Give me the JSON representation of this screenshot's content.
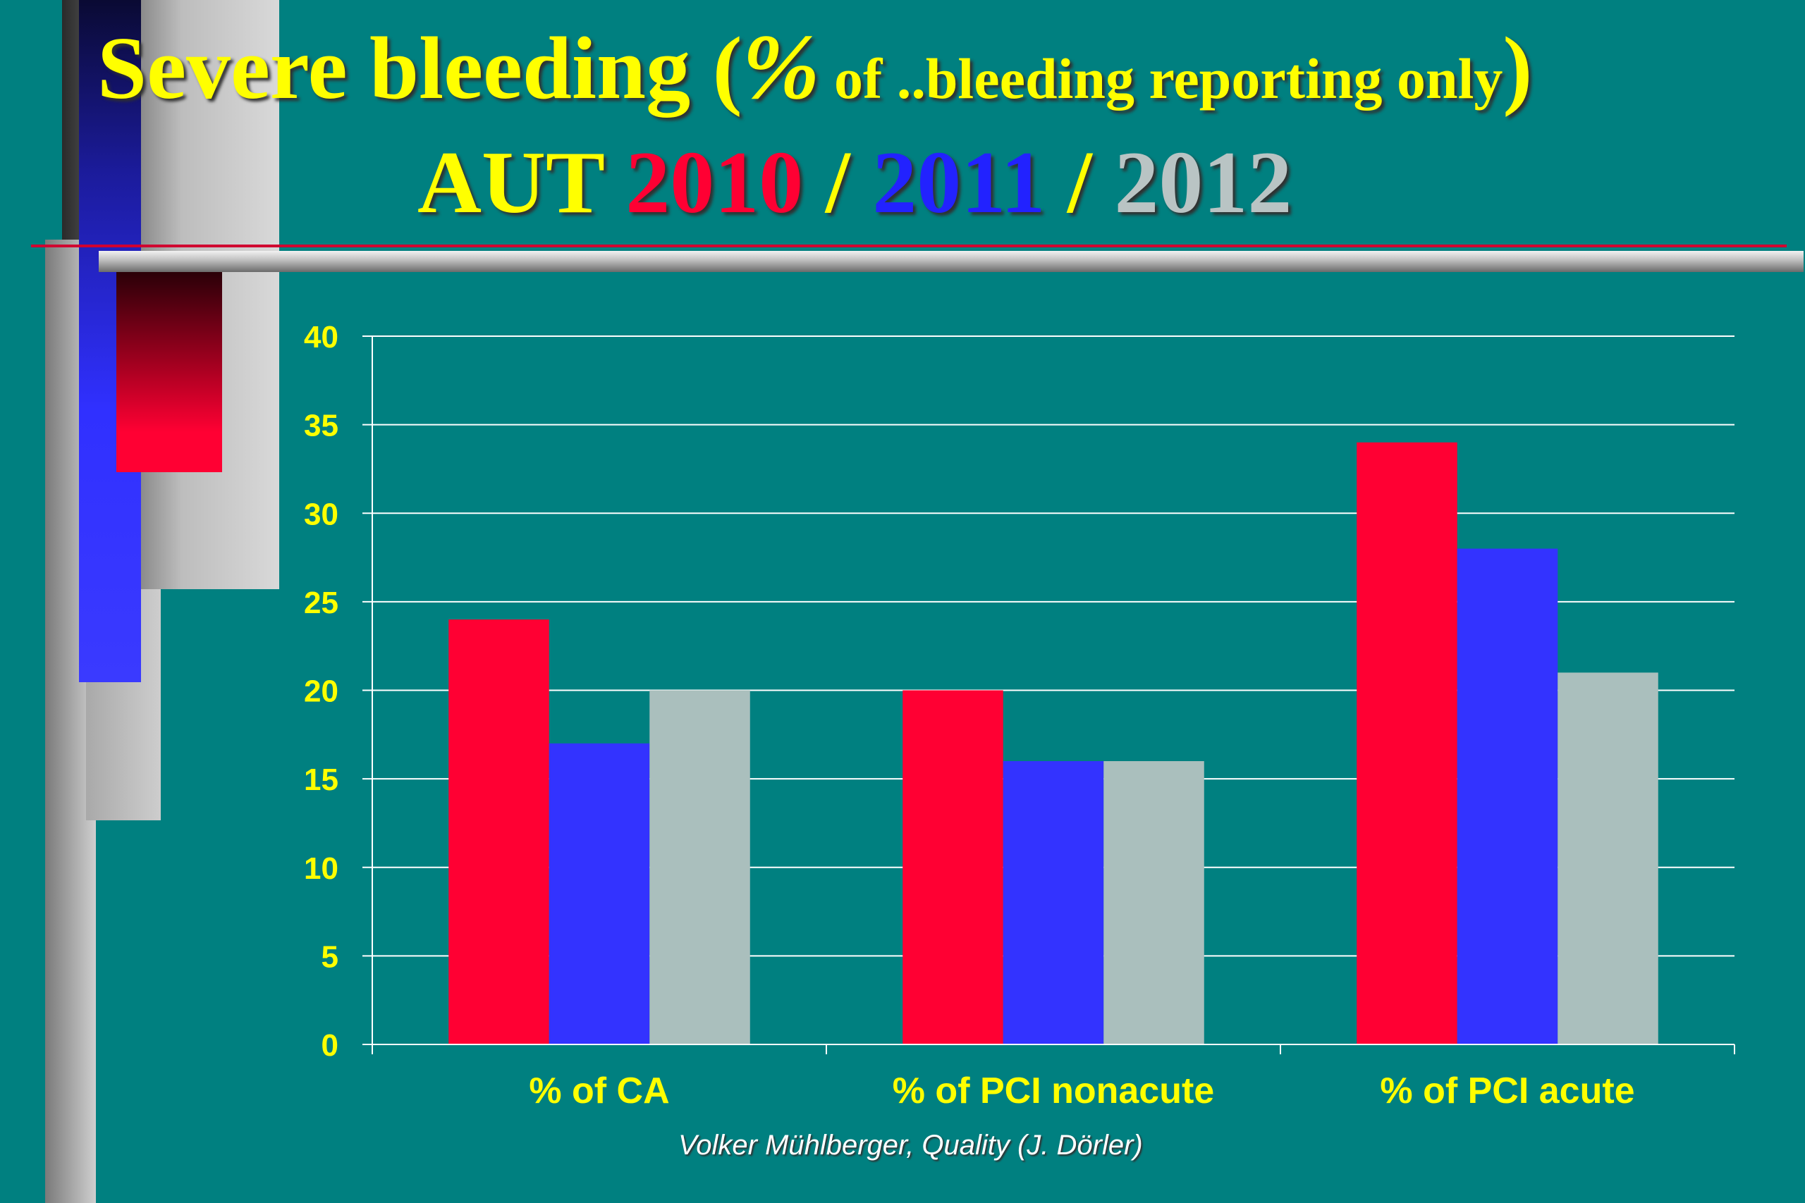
{
  "title": {
    "line1_main": "Severe  bleeding (",
    "line1_pct": "%",
    "line1_small": " of ..bleeding  reporting only",
    "line1_close": ")",
    "line2_prefix": "AUT ",
    "year_2010": "2010",
    "sep1": " / ",
    "year_2011": "2011",
    "sep2": " / ",
    "year_2012": "2012"
  },
  "credit": "Volker Mühlberger, Quality  (J. Dörler)",
  "colors": {
    "background": "#008080",
    "text": "#ffff00",
    "series_2010": "#ff0033",
    "series_2011": "#3333ff",
    "series_2012": "#aabfbd",
    "gridline": "#ffffff"
  },
  "chart_data": {
    "type": "bar",
    "categories": [
      "% of CA",
      "% of PCI nonacute",
      "% of PCI acute"
    ],
    "series": [
      {
        "name": "2010",
        "color": "#ff0033",
        "values": [
          24,
          20,
          34
        ]
      },
      {
        "name": "2011",
        "color": "#3333ff",
        "values": [
          17,
          16,
          28
        ]
      },
      {
        "name": "2012",
        "color": "#aabfbd",
        "values": [
          20,
          16,
          21
        ]
      }
    ],
    "ylim": [
      0,
      40
    ],
    "yticks": [
      "0",
      "5",
      "10",
      "15",
      "20",
      "25",
      "30",
      "35",
      "40"
    ],
    "grid": true,
    "legend": "none"
  }
}
